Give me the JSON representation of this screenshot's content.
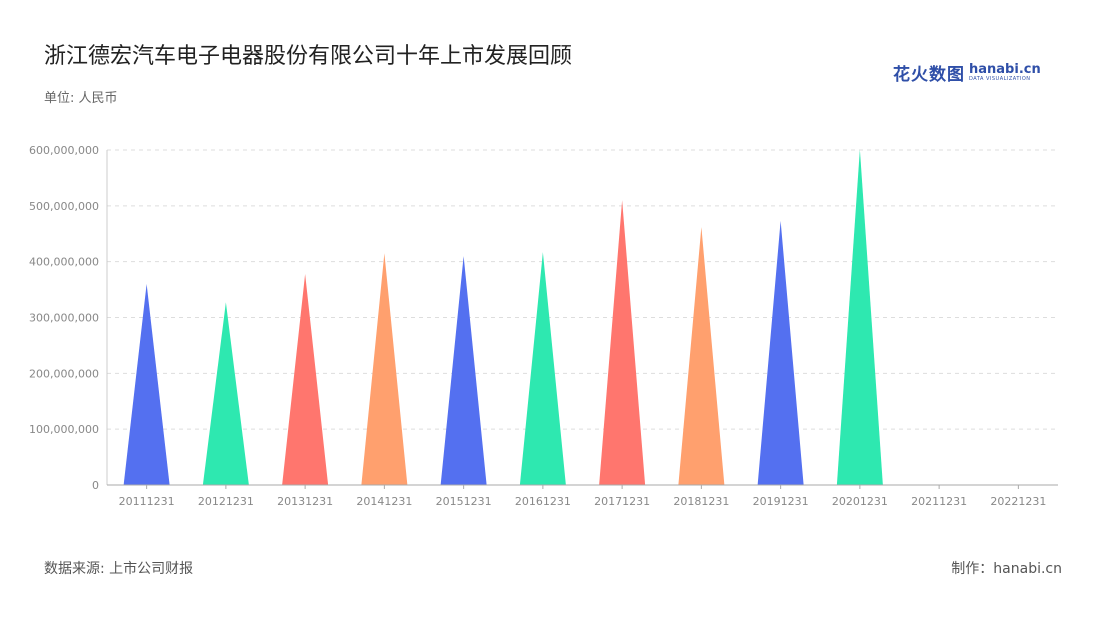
{
  "header": {
    "title": "浙江德宏汽车电子电器股份有限公司十年上市发展回顾",
    "unit": "单位: 人民币"
  },
  "logo": {
    "cn": "花火数图",
    "en": "hanabi.cn",
    "sub": "DATA VISUALIZATION"
  },
  "footer": {
    "source": "数据来源: 上市公司财报",
    "credit": "制作：hanabi.cn"
  },
  "chart_data": {
    "type": "bar",
    "bar_shape": "triangle",
    "categories": [
      "20111231",
      "20121231",
      "20131231",
      "20141231",
      "20151231",
      "20161231",
      "20171231",
      "20181231",
      "20191231",
      "20201231",
      "20211231",
      "20221231"
    ],
    "values": [
      360000000,
      327000000,
      378000000,
      415000000,
      410000000,
      417000000,
      510000000,
      462000000,
      473000000,
      601000000,
      0,
      0
    ],
    "colors": [
      "#5470f0",
      "#2ee8b0",
      "#ff766e",
      "#ffa06e",
      "#5470f0",
      "#2ee8b0",
      "#ff766e",
      "#ffa06e",
      "#5470f0",
      "#2ee8b0",
      "#5470f0",
      "#2ee8b0"
    ],
    "yticks": [
      "0",
      "100,000,000",
      "200,000,000",
      "300,000,000",
      "400,000,000",
      "500,000,000",
      "600,000,000"
    ],
    "ylim": [
      0,
      600000000
    ],
    "grid": true
  }
}
